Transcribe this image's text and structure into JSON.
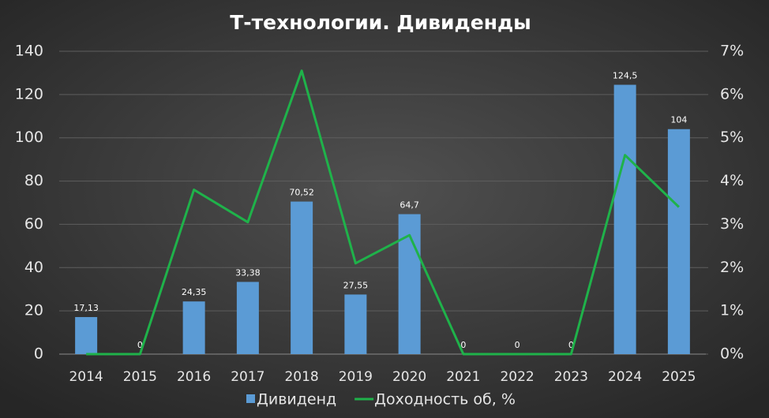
{
  "chart_data": {
    "type": "bar",
    "title": "Т-технологии. Дивиденды",
    "categories": [
      "2014",
      "2015",
      "2016",
      "2017",
      "2018",
      "2019",
      "2020",
      "2021",
      "2022",
      "2023",
      "2024",
      "2025"
    ],
    "series": [
      {
        "name": "Дивиденд",
        "type": "bar",
        "color": "#5b9bd5",
        "values": [
          17.13,
          0,
          24.35,
          33.38,
          70.52,
          27.55,
          64.7,
          0,
          0,
          0,
          124.5,
          104
        ],
        "value_labels": [
          "17,13",
          "0",
          "24,35",
          "33,38",
          "70,52",
          "27,55",
          "64,7",
          "0",
          "0",
          "0",
          "124,5",
          "104"
        ]
      },
      {
        "name": "Доходность об, %",
        "type": "line",
        "axis": "y2",
        "color": "#1fb24a",
        "values": [
          0,
          0,
          3.8,
          3.05,
          6.55,
          2.1,
          2.75,
          0,
          0,
          0,
          4.6,
          3.4
        ]
      }
    ],
    "ylim": [
      0,
      140
    ],
    "yticks": [
      0,
      20,
      40,
      60,
      80,
      100,
      120,
      140
    ],
    "y2lim": [
      0,
      7
    ],
    "y2ticks": [
      {
        "value": 0,
        "label": "0%"
      },
      {
        "value": 1,
        "label": "1%"
      },
      {
        "value": 2,
        "label": "2%"
      },
      {
        "value": 3,
        "label": "3%"
      },
      {
        "value": 4,
        "label": "4%"
      },
      {
        "value": 5,
        "label": "5%"
      },
      {
        "value": 6,
        "label": "6%"
      },
      {
        "value": 7,
        "label": "7%"
      }
    ],
    "grid": true,
    "legend": "bottom"
  }
}
